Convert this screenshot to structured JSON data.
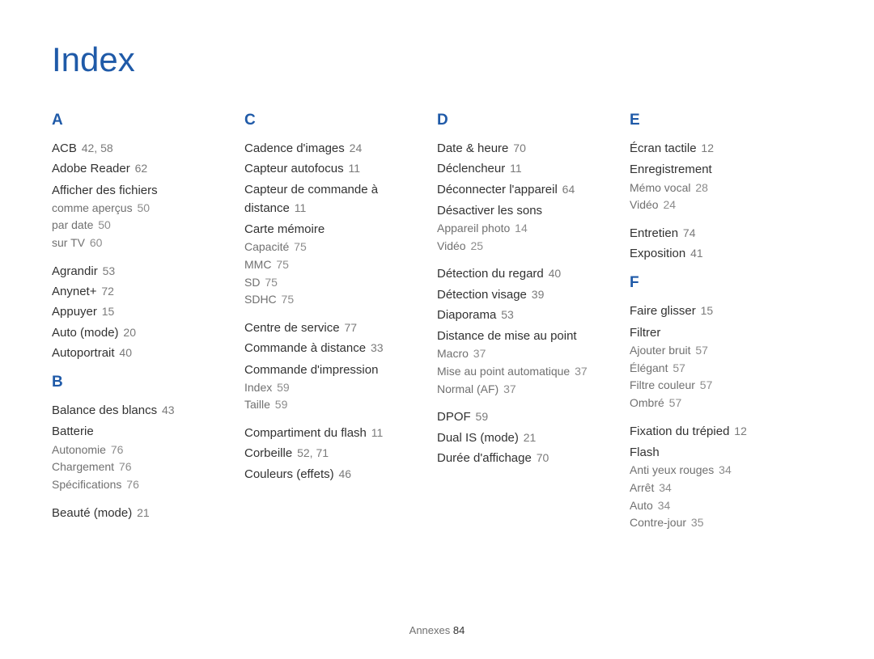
{
  "title": "Index",
  "footer": {
    "label": "Annexes",
    "page": "84"
  },
  "columns": [
    [
      {
        "type": "letter",
        "text": "A"
      },
      {
        "type": "entry",
        "text": "ACB",
        "pages": "42, 58"
      },
      {
        "type": "entry",
        "text": "Adobe Reader",
        "pages": "62"
      },
      {
        "type": "head",
        "text": "Afficher des fichiers"
      },
      {
        "type": "sub",
        "text": "comme aperçus",
        "pages": "50"
      },
      {
        "type": "sub",
        "text": "par date",
        "pages": "50"
      },
      {
        "type": "sub",
        "text": "sur TV",
        "pages": "60"
      },
      {
        "type": "gap"
      },
      {
        "type": "entry",
        "text": "Agrandir",
        "pages": "53"
      },
      {
        "type": "entry",
        "text": "Anynet+",
        "pages": "72"
      },
      {
        "type": "entry",
        "text": "Appuyer",
        "pages": "15"
      },
      {
        "type": "entry",
        "text": "Auto (mode)",
        "pages": "20"
      },
      {
        "type": "entry",
        "text": "Autoportrait",
        "pages": "40"
      },
      {
        "type": "letter",
        "text": "B"
      },
      {
        "type": "entry",
        "text": "Balance des blancs",
        "pages": "43"
      },
      {
        "type": "head",
        "text": "Batterie"
      },
      {
        "type": "sub",
        "text": "Autonomie",
        "pages": "76"
      },
      {
        "type": "sub",
        "text": "Chargement",
        "pages": "76"
      },
      {
        "type": "sub",
        "text": "Spécifications",
        "pages": "76"
      },
      {
        "type": "gap"
      },
      {
        "type": "entry",
        "text": "Beauté (mode)",
        "pages": "21"
      }
    ],
    [
      {
        "type": "letter",
        "text": "C"
      },
      {
        "type": "entry",
        "text": "Cadence d'images",
        "pages": "24"
      },
      {
        "type": "entry",
        "text": "Capteur autofocus",
        "pages": "11"
      },
      {
        "type": "entry",
        "text": "Capteur de commande à distance",
        "pages": "11"
      },
      {
        "type": "head",
        "text": "Carte mémoire"
      },
      {
        "type": "sub",
        "text": "Capacité",
        "pages": "75"
      },
      {
        "type": "sub",
        "text": "MMC",
        "pages": "75"
      },
      {
        "type": "sub",
        "text": "SD",
        "pages": "75"
      },
      {
        "type": "sub",
        "text": "SDHC",
        "pages": "75"
      },
      {
        "type": "gap"
      },
      {
        "type": "entry",
        "text": "Centre de service",
        "pages": "77"
      },
      {
        "type": "entry",
        "text": "Commande à distance",
        "pages": "33"
      },
      {
        "type": "head",
        "text": "Commande d'impression"
      },
      {
        "type": "sub",
        "text": "Index",
        "pages": "59"
      },
      {
        "type": "sub",
        "text": "Taille",
        "pages": "59"
      },
      {
        "type": "gap"
      },
      {
        "type": "entry",
        "text": "Compartiment du flash",
        "pages": "11"
      },
      {
        "type": "entry",
        "text": "Corbeille",
        "pages": "52, 71"
      },
      {
        "type": "entry",
        "text": "Couleurs (effets)",
        "pages": "46"
      }
    ],
    [
      {
        "type": "letter",
        "text": "D"
      },
      {
        "type": "entry",
        "text": "Date & heure",
        "pages": "70"
      },
      {
        "type": "entry",
        "text": "Déclencheur",
        "pages": "11"
      },
      {
        "type": "entry",
        "text": "Déconnecter l'appareil",
        "pages": "64"
      },
      {
        "type": "head",
        "text": "Désactiver les sons"
      },
      {
        "type": "sub",
        "text": "Appareil photo",
        "pages": "14"
      },
      {
        "type": "sub",
        "text": "Vidéo",
        "pages": "25"
      },
      {
        "type": "gap"
      },
      {
        "type": "entry",
        "text": "Détection du regard",
        "pages": "40"
      },
      {
        "type": "entry",
        "text": "Détection visage",
        "pages": "39"
      },
      {
        "type": "entry",
        "text": "Diaporama",
        "pages": "53"
      },
      {
        "type": "head",
        "text": "Distance de mise au point"
      },
      {
        "type": "sub",
        "text": "Macro",
        "pages": "37"
      },
      {
        "type": "sub",
        "text": "Mise au point automatique",
        "pages": "37"
      },
      {
        "type": "sub",
        "text": "Normal (AF)",
        "pages": "37"
      },
      {
        "type": "gap"
      },
      {
        "type": "entry",
        "text": "DPOF",
        "pages": "59"
      },
      {
        "type": "entry",
        "text": "Dual IS (mode)",
        "pages": "21"
      },
      {
        "type": "entry",
        "text": "Durée d'affichage",
        "pages": "70"
      }
    ],
    [
      {
        "type": "letter",
        "text": "E"
      },
      {
        "type": "entry",
        "text": "Écran tactile",
        "pages": "12"
      },
      {
        "type": "head",
        "text": "Enregistrement"
      },
      {
        "type": "sub",
        "text": "Mémo vocal",
        "pages": "28"
      },
      {
        "type": "sub",
        "text": "Vidéo",
        "pages": "24"
      },
      {
        "type": "gap"
      },
      {
        "type": "entry",
        "text": "Entretien",
        "pages": "74"
      },
      {
        "type": "entry",
        "text": "Exposition",
        "pages": "41"
      },
      {
        "type": "letter",
        "text": "F"
      },
      {
        "type": "entry",
        "text": "Faire glisser",
        "pages": "15"
      },
      {
        "type": "head",
        "text": "Filtrer"
      },
      {
        "type": "sub",
        "text": "Ajouter bruit",
        "pages": "57"
      },
      {
        "type": "sub",
        "text": "Élégant",
        "pages": "57"
      },
      {
        "type": "sub",
        "text": "Filtre couleur",
        "pages": "57"
      },
      {
        "type": "sub",
        "text": "Ombré",
        "pages": "57"
      },
      {
        "type": "gap"
      },
      {
        "type": "entry",
        "text": "Fixation du trépied",
        "pages": "12"
      },
      {
        "type": "head",
        "text": "Flash"
      },
      {
        "type": "sub",
        "text": "Anti yeux rouges",
        "pages": "34"
      },
      {
        "type": "sub",
        "text": "Arrêt",
        "pages": "34"
      },
      {
        "type": "sub",
        "text": "Auto",
        "pages": "34"
      },
      {
        "type": "sub",
        "text": "Contre-jour",
        "pages": "35"
      }
    ]
  ]
}
